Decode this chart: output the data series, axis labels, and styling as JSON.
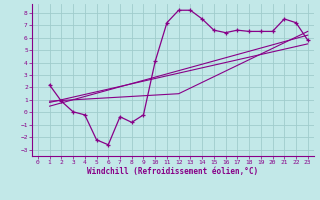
{
  "xlabel": "Windchill (Refroidissement éolien,°C)",
  "background_color": "#c2e8e8",
  "grid_color": "#a0cccc",
  "line_color": "#880088",
  "xlim": [
    -0.5,
    23.5
  ],
  "ylim": [
    -3.5,
    8.7
  ],
  "xticks": [
    0,
    1,
    2,
    3,
    4,
    5,
    6,
    7,
    8,
    9,
    10,
    11,
    12,
    13,
    14,
    15,
    16,
    17,
    18,
    19,
    20,
    21,
    22,
    23
  ],
  "yticks": [
    -3,
    -2,
    -1,
    0,
    1,
    2,
    3,
    4,
    5,
    6,
    7,
    8
  ],
  "curve_x": [
    1,
    2,
    3,
    4,
    5,
    6,
    7,
    8,
    9,
    10,
    11,
    12,
    13,
    14,
    15,
    16,
    17,
    18,
    19,
    20,
    21,
    22,
    23
  ],
  "curve_y": [
    2.2,
    0.9,
    0.05,
    -0.2,
    -2.2,
    -2.6,
    -0.35,
    -0.8,
    -0.2,
    4.1,
    7.2,
    8.2,
    8.2,
    7.5,
    6.6,
    6.4,
    6.6,
    6.5,
    6.5,
    6.5,
    7.5,
    7.2,
    5.8
  ],
  "line1_x": [
    1,
    23
  ],
  "line1_y": [
    0.8,
    5.5
  ],
  "line2_x": [
    1,
    23
  ],
  "line2_y": [
    0.5,
    6.2
  ],
  "line3_x": [
    1,
    12,
    23
  ],
  "line3_y": [
    0.9,
    1.5,
    6.5
  ]
}
